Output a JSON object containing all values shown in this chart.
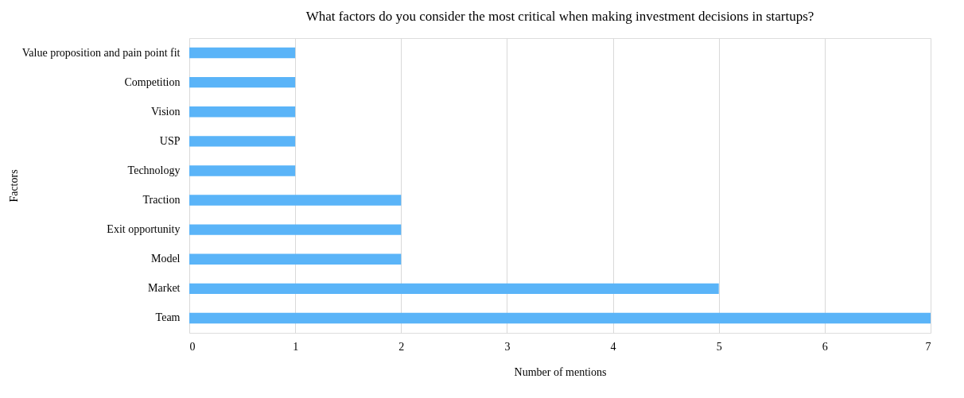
{
  "chart_data": {
    "type": "bar",
    "orientation": "horizontal",
    "title": "What factors do you consider the most critical when making investment decisions in startups?",
    "xlabel": "Number of mentions",
    "ylabel": "Factors",
    "categories": [
      "Value proposition and pain point fit",
      "Competition",
      "Vision",
      "USP",
      "Technology",
      "Traction",
      "Exit opportunity",
      "Model",
      "Market",
      "Team"
    ],
    "series": [
      {
        "color": "#5ab4f8",
        "values": [
          1,
          1,
          1,
          1,
          1,
          2,
          2,
          2,
          5,
          7
        ]
      }
    ],
    "xlim": [
      0,
      7
    ],
    "xticks": [
      0,
      1,
      2,
      3,
      4,
      5,
      6,
      7
    ],
    "grid": "x"
  }
}
